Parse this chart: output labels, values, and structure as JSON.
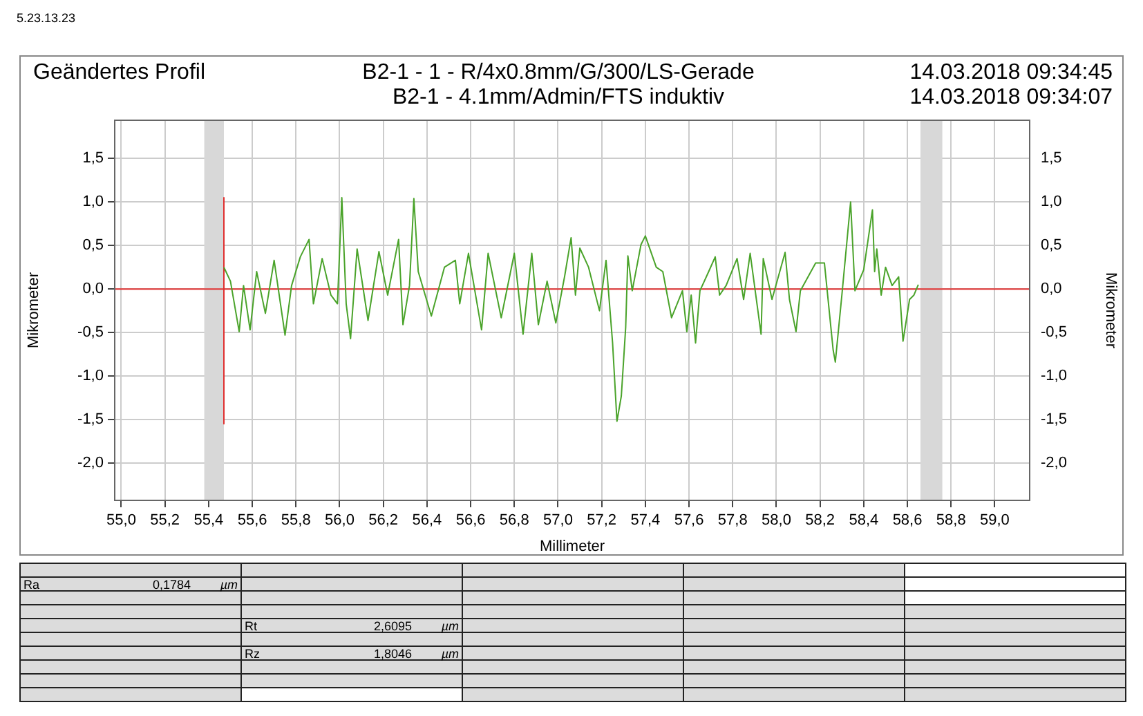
{
  "chart_data": {
    "type": "line",
    "title": "Geändertes Profil",
    "subtitle": "B2-1 - 1 - R/4x0.8mm/G/300/LS-Gerade",
    "xlabel": "Millimeter",
    "ylabel": "Mikrometer",
    "y2label": "Mikrometer",
    "annotations": [
      "5.23.13.23",
      "B2-1 - 4.1mm/Admin/FTS induktiv",
      "14.03.2018 09:34:45",
      "14.03.2018 09:34:07",
      "Ra",
      "0,1784",
      "µm",
      "Rt",
      "2,6095",
      "µm",
      "Rz",
      "1,8046",
      "µm"
    ],
    "xlim": [
      54.97,
      59.16
    ],
    "ylim": [
      -2.43,
      1.94
    ],
    "y2lim": [
      -2.43,
      1.94
    ],
    "xticks": [
      {
        "value": 55.0,
        "label": "55,0"
      },
      {
        "value": 55.2,
        "label": "55,2"
      },
      {
        "value": 55.4,
        "label": "55,4"
      },
      {
        "value": 55.6,
        "label": "55,6"
      },
      {
        "value": 55.8,
        "label": "55,8"
      },
      {
        "value": 56.0,
        "label": "56,0"
      },
      {
        "value": 56.2,
        "label": "56,2"
      },
      {
        "value": 56.4,
        "label": "56,4"
      },
      {
        "value": 56.6,
        "label": "56,6"
      },
      {
        "value": 56.8,
        "label": "56,8"
      },
      {
        "value": 57.0,
        "label": "57,0"
      },
      {
        "value": 57.2,
        "label": "57,2"
      },
      {
        "value": 57.4,
        "label": "57,4"
      },
      {
        "value": 57.6,
        "label": "57,6"
      },
      {
        "value": 57.8,
        "label": "57,8"
      },
      {
        "value": 58.0,
        "label": "58,0"
      },
      {
        "value": 58.2,
        "label": "58,2"
      },
      {
        "value": 58.4,
        "label": "58,4"
      },
      {
        "value": 58.6,
        "label": "58,6"
      },
      {
        "value": 58.8,
        "label": "58,8"
      },
      {
        "value": 59.0,
        "label": "59,0"
      }
    ],
    "yticks": [
      {
        "value": -2.0,
        "label": "-2,0"
      },
      {
        "value": -1.5,
        "label": "-1,5"
      },
      {
        "value": -1.0,
        "label": "-1,0"
      },
      {
        "value": -0.5,
        "label": "-0,5"
      },
      {
        "value": 0,
        "label": "0,0"
      },
      {
        "value": 0.5,
        "label": "0,5"
      },
      {
        "value": 1.0,
        "label": "1,0"
      },
      {
        "value": 1.5,
        "label": "1,5"
      }
    ],
    "y2ticks": [
      {
        "value": -2.0,
        "label": "-2,0"
      },
      {
        "value": -1.5,
        "label": "-1,5"
      },
      {
        "value": -1.0,
        "label": "-1,0"
      },
      {
        "value": -0.5,
        "label": "-0,5"
      },
      {
        "value": 0,
        "label": "0,0"
      },
      {
        "value": 0.5,
        "label": "0,5"
      },
      {
        "value": 1.0,
        "label": "1,0"
      },
      {
        "value": 1.5,
        "label": "1,5"
      }
    ],
    "grid": true,
    "legend": false,
    "marker": "none",
    "ref_lines": [
      {
        "axis": "y",
        "value": 0,
        "color": "#e03030"
      }
    ],
    "bands": [
      {
        "axis": "x",
        "from": 55.38,
        "to": 55.47,
        "color": "#d8d8d8"
      },
      {
        "axis": "x",
        "from": 58.66,
        "to": 58.76,
        "color": "#d8d8d8"
      }
    ],
    "series": [
      {
        "color": "#4aa32a",
        "x": [
          55.47,
          55.5,
          55.54,
          55.56,
          55.59,
          55.62,
          55.66,
          55.7,
          55.75,
          55.78,
          55.82,
          55.86,
          55.88,
          55.92,
          55.96,
          55.99,
          56.01,
          56.03,
          56.05,
          56.08,
          56.13,
          56.18,
          56.22,
          56.27,
          56.29,
          56.32,
          56.34,
          56.36,
          56.42,
          56.48,
          56.53,
          56.55,
          56.59,
          56.65,
          56.68,
          56.74,
          56.8,
          56.84,
          56.88,
          56.91,
          56.95,
          56.99,
          57.03,
          57.06,
          57.08,
          57.1,
          57.14,
          57.19,
          57.22,
          57.25,
          57.27,
          57.29,
          57.31,
          57.32,
          57.34,
          57.38,
          57.4,
          57.45,
          57.48,
          57.52,
          57.57,
          57.59,
          57.61,
          57.63,
          57.65,
          57.69,
          57.72,
          57.74,
          57.77,
          57.82,
          57.85,
          57.88,
          57.93,
          57.94,
          57.98,
          58.04,
          58.06,
          58.09,
          58.11,
          58.18,
          58.22,
          58.26,
          58.27,
          58.3,
          58.34,
          58.36,
          58.4,
          58.44,
          58.45,
          58.46,
          58.48,
          58.5,
          58.53,
          58.56,
          58.58,
          58.61,
          58.63,
          58.65
        ],
        "values": [
          0.25,
          0.09,
          -0.49,
          0.04,
          -0.47,
          0.2,
          -0.28,
          0.33,
          -0.53,
          0.04,
          0.37,
          0.57,
          -0.17,
          0.35,
          -0.07,
          -0.17,
          1.05,
          -0.17,
          -0.57,
          0.46,
          -0.36,
          0.43,
          -0.07,
          0.57,
          -0.41,
          0.04,
          1.04,
          0.2,
          -0.31,
          0.25,
          0.33,
          -0.17,
          0.41,
          -0.47,
          0.41,
          -0.33,
          0.41,
          -0.52,
          0.41,
          -0.41,
          0.09,
          -0.39,
          0.14,
          0.59,
          -0.07,
          0.47,
          0.25,
          -0.25,
          0.33,
          -0.62,
          -1.52,
          -1.23,
          -0.44,
          0.38,
          -0.02,
          0.51,
          0.61,
          0.25,
          0.2,
          -0.33,
          -0.02,
          -0.49,
          -0.07,
          -0.62,
          -0.02,
          0.2,
          0.37,
          -0.07,
          0.04,
          0.35,
          -0.12,
          0.41,
          -0.52,
          0.35,
          -0.12,
          0.42,
          -0.12,
          -0.49,
          -0.02,
          0.3,
          0.3,
          -0.7,
          -0.84,
          -0.07,
          1.0,
          -0.02,
          0.22,
          0.91,
          0.2,
          0.46,
          -0.07,
          0.25,
          0.04,
          0.14,
          -0.6,
          -0.12,
          -0.07,
          0.05
        ]
      },
      {
        "color": "#e03030",
        "x": [
          55.47,
          55.47
        ],
        "values": [
          1.05,
          -1.55
        ]
      }
    ]
  }
}
